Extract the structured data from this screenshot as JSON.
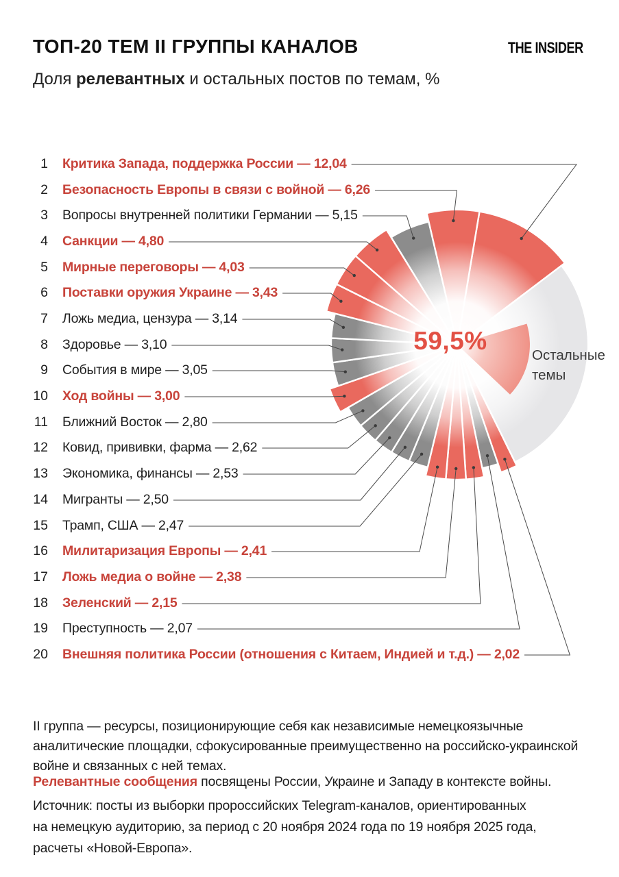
{
  "header": {
    "title": "ТОП-20 ТЕМ II ГРУППЫ КАНАЛОВ",
    "logo": "THE INSIDER",
    "subtitle_prefix": "Доля ",
    "subtitle_highlight": "релевантных",
    "subtitle_suffix": " и остальных постов по темам, %"
  },
  "chart_data": {
    "type": "pie",
    "variant": "rose-donut-with-center-glow",
    "units": "%",
    "title": "ТОП-20 ТЕМ II ГРУППЫ КАНАЛОВ",
    "subtitle": "Доля релевантных и остальных постов по темам, %",
    "center_label": "59,5%",
    "other_segment": {
      "label": "Остальные темы",
      "label_line1": "Остальные",
      "label_line2": "темы"
    },
    "items": [
      {
        "rank": 1,
        "label": "Критика Запада, поддержка России",
        "value": 12.04,
        "value_display": "12,04",
        "relevant": true
      },
      {
        "rank": 2,
        "label": "Безопасность Европы в связи с войной",
        "value": 6.26,
        "value_display": "6,26",
        "relevant": true
      },
      {
        "rank": 3,
        "label": "Вопросы внутренней политики Германии",
        "value": 5.15,
        "value_display": "5,15",
        "relevant": false
      },
      {
        "rank": 4,
        "label": "Санкции",
        "value": 4.8,
        "value_display": "4,80",
        "relevant": true
      },
      {
        "rank": 5,
        "label": "Мирные переговоры",
        "value": 4.03,
        "value_display": "4,03",
        "relevant": true
      },
      {
        "rank": 6,
        "label": "Поставки оружия Украине",
        "value": 3.43,
        "value_display": "3,43",
        "relevant": true
      },
      {
        "rank": 7,
        "label": "Ложь медиа, цензура",
        "value": 3.14,
        "value_display": "3,14",
        "relevant": false
      },
      {
        "rank": 8,
        "label": "Здоровье",
        "value": 3.1,
        "value_display": "3,10",
        "relevant": false
      },
      {
        "rank": 9,
        "label": "События в мире",
        "value": 3.05,
        "value_display": "3,05",
        "relevant": false
      },
      {
        "rank": 10,
        "label": "Ход войны",
        "value": 3.0,
        "value_display": "3,00",
        "relevant": true
      },
      {
        "rank": 11,
        "label": "Ближний Восток",
        "value": 2.8,
        "value_display": "2,80",
        "relevant": false
      },
      {
        "rank": 12,
        "label": "Ковид, прививки, фарма",
        "value": 2.62,
        "value_display": "2,62",
        "relevant": false
      },
      {
        "rank": 13,
        "label": "Экономика, финансы",
        "value": 2.53,
        "value_display": "2,53",
        "relevant": false
      },
      {
        "rank": 14,
        "label": "Мигранты",
        "value": 2.5,
        "value_display": "2,50",
        "relevant": false
      },
      {
        "rank": 15,
        "label": "Трамп, США",
        "value": 2.47,
        "value_display": "2,47",
        "relevant": false
      },
      {
        "rank": 16,
        "label": "Милитаризация Европы",
        "value": 2.41,
        "value_display": "2,41",
        "relevant": true
      },
      {
        "rank": 17,
        "label": "Ложь медиа о войне",
        "value": 2.38,
        "value_display": "2,38",
        "relevant": true
      },
      {
        "rank": 18,
        "label": "Зеленский",
        "value": 2.15,
        "value_display": "2,15",
        "relevant": true
      },
      {
        "rank": 19,
        "label": "Преступность",
        "value": 2.07,
        "value_display": "2,07",
        "relevant": false
      },
      {
        "rank": 20,
        "label": "Внешняя политика России (отношения с Китаем, Индией и т.д.)",
        "value": 2.02,
        "value_display": "2,02",
        "relevant": true
      }
    ]
  },
  "footer": {
    "group_note_lines": [
      "II группа — ресурсы, позиционирующие себя как независимые немецкоязычные",
      "аналитические площадки, сфокусированные преимущественно на российско-украинской",
      "войне и связанных с ней темах."
    ],
    "relevant_note_highlight": "Релевантные сообщения",
    "relevant_note_rest": " посвящены России, Украине и Западу в контексте войны.",
    "source_lines": [
      "Источник: посты из выборки пророссийских Telegram-каналов, ориентированных",
      "на немецкую аудиторию, за период с 20 ноября 2024 года по 19 ноября 2025 года,",
      "расчеты «Новой-Европа»."
    ]
  },
  "colors": {
    "relevant_wedge": "#E9695E",
    "non_relevant_wedge": "#8C8C8C",
    "other_wedge": "#E6E6E8",
    "other_inner_wedge": "#EF9287",
    "accent_text": "#C8443B",
    "center_text": "#E25044",
    "dark_text": "#1F1F1F",
    "leader_line": "#4A4A4A"
  }
}
